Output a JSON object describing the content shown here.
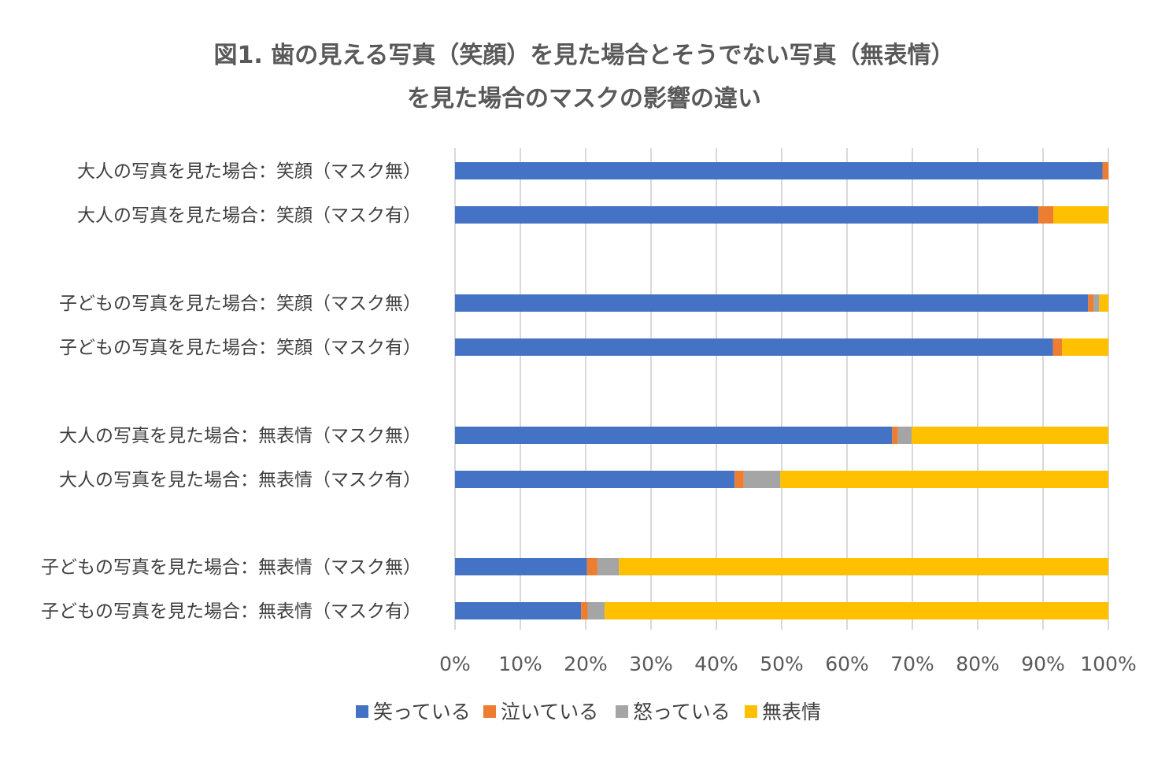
{
  "chart_data": {
    "type": "bar",
    "orientation": "horizontal",
    "stacked": "percent",
    "title": "図1. 歯の見える写真（笑顔）を見た場合とそうでない写真（無表情）を見た場合のマスクの影響の違い",
    "title_lines": [
      "図1. 歯の見える写真（笑顔）を見た場合とそうでない写真（無表情）",
      "を見た場合のマスクの影響の違い"
    ],
    "categories": [
      "大人の写真を見た場合：笑顔（マスク無）",
      "大人の写真を見た場合：笑顔（マスク有）",
      "子どもの写真を見た場合：笑顔（マスク無）",
      "子どもの写真を見た場合：笑顔（マスク有）",
      "大人の写真を見た場合：無表情（マスク無）",
      "大人の写真を見た場合：無表情（マスク有）",
      "子どもの写真を見た場合：無表情（マスク無）",
      "子どもの写真を見た場合：無表情（マスク有）"
    ],
    "series": [
      {
        "name": "笑っている",
        "color": "#4472c4",
        "values": [
          99.1,
          89.3,
          96.9,
          91.5,
          66.9,
          42.8,
          20.2,
          19.3
        ]
      },
      {
        "name": "泣いている",
        "color": "#ed7d31",
        "values": [
          0.9,
          2.3,
          0.8,
          1.4,
          0.9,
          1.4,
          1.6,
          1.0
        ]
      },
      {
        "name": "怒っている",
        "color": "#a5a5a5",
        "values": [
          0.0,
          0.0,
          0.9,
          0.0,
          2.1,
          5.6,
          3.3,
          2.6
        ]
      },
      {
        "name": "無表情",
        "color": "#ffc000",
        "values": [
          0.0,
          8.4,
          1.4,
          7.1,
          30.1,
          50.2,
          74.9,
          77.1
        ]
      }
    ],
    "x_ticks": [
      "0%",
      "10%",
      "20%",
      "30%",
      "40%",
      "50%",
      "60%",
      "70%",
      "80%",
      "90%",
      "100%"
    ],
    "xlim": [
      0,
      100
    ],
    "xlabel": "",
    "ylabel": "",
    "grid": "vertical",
    "legend": "bottom"
  }
}
